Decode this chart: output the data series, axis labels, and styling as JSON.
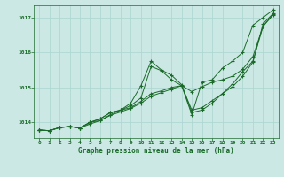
{
  "xlabel": "Graphe pression niveau de la mer (hPa)",
  "background_color": "#cce8e4",
  "grid_color": "#aad4d0",
  "line_color": "#1a6b2a",
  "xlim": [
    -0.5,
    23.5
  ],
  "ylim": [
    1013.55,
    1017.35
  ],
  "yticks": [
    1014,
    1015,
    1016,
    1017
  ],
  "xticks": [
    0,
    1,
    2,
    3,
    4,
    5,
    6,
    7,
    8,
    9,
    10,
    11,
    12,
    13,
    14,
    15,
    16,
    17,
    18,
    19,
    20,
    21,
    22,
    23
  ],
  "series": [
    [
      1013.78,
      1013.76,
      1013.85,
      1013.88,
      1013.84,
      1014.0,
      1014.1,
      1014.28,
      1014.35,
      1014.48,
      1014.7,
      1015.6,
      1015.48,
      1015.22,
      1015.05,
      1014.22,
      1015.15,
      1015.22,
      1015.55,
      1015.75,
      1016.0,
      1016.78,
      1017.0,
      1017.22
    ],
    [
      1013.78,
      1013.76,
      1013.85,
      1013.88,
      1013.84,
      1014.0,
      1014.1,
      1014.28,
      1014.35,
      1014.55,
      1015.05,
      1015.75,
      1015.5,
      1015.35,
      1015.08,
      1014.28,
      1014.35,
      1014.55,
      1014.82,
      1015.1,
      1015.45,
      1015.75,
      1016.75,
      1017.1
    ],
    [
      1013.78,
      1013.76,
      1013.85,
      1013.88,
      1013.84,
      1014.0,
      1014.05,
      1014.22,
      1014.35,
      1014.42,
      1014.6,
      1014.82,
      1014.9,
      1015.0,
      1015.05,
      1014.35,
      1014.42,
      1014.62,
      1014.82,
      1015.02,
      1015.32,
      1015.72,
      1016.82,
      1017.12
    ],
    [
      1013.78,
      1013.76,
      1013.85,
      1013.88,
      1013.84,
      1013.95,
      1014.05,
      1014.2,
      1014.3,
      1014.4,
      1014.55,
      1014.75,
      1014.85,
      1014.95,
      1015.05,
      1014.88,
      1015.02,
      1015.15,
      1015.22,
      1015.32,
      1015.52,
      1015.88,
      1016.75,
      1017.08
    ]
  ]
}
